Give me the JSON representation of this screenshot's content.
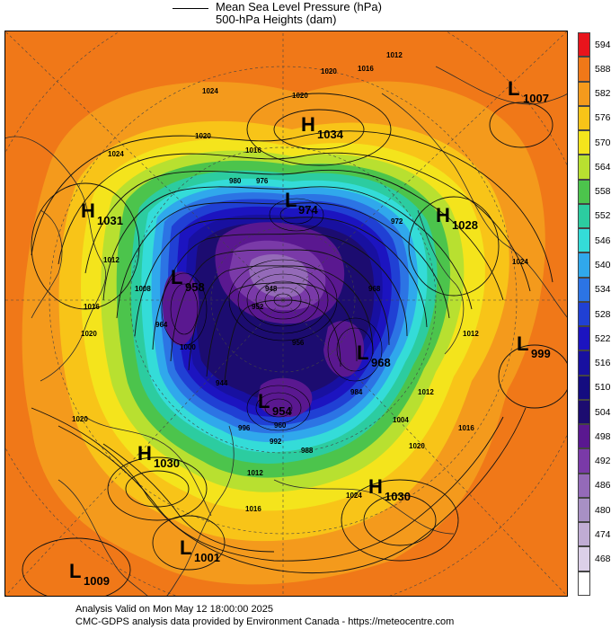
{
  "legend": {
    "line1": "Mean Sea Level Pressure (hPa)",
    "line2": "500-hPa Heights (dam)"
  },
  "colorbar": {
    "labels": [
      "594",
      "588",
      "582",
      "576",
      "570",
      "564",
      "558",
      "552",
      "546",
      "540",
      "534",
      "528",
      "522",
      "516",
      "510",
      "504",
      "498",
      "492",
      "486",
      "480",
      "474",
      "468"
    ],
    "colors": [
      "#e8141c",
      "#f07818",
      "#f49a1c",
      "#f8c418",
      "#f4e41c",
      "#b8e030",
      "#4cc44c",
      "#2ccca0",
      "#34dcd8",
      "#30a8ec",
      "#2c74e4",
      "#2040d4",
      "#1c14c0",
      "#1810a0",
      "#140c80",
      "#1c0c70",
      "#5a1890",
      "#7a3aa8",
      "#946ab8",
      "#a890c4",
      "#c0acd4",
      "#dcd0e8",
      "#ffffff"
    ]
  },
  "pressure_centers": [
    {
      "type": "H",
      "value": "1034",
      "label_H": "H",
      "label_v": "1034"
    },
    {
      "type": "L",
      "value": "1007",
      "label_H": "L",
      "label_v": "1007"
    },
    {
      "type": "H",
      "value": "1031",
      "label_H": "H",
      "label_v": "1031"
    },
    {
      "type": "H",
      "value": "1028",
      "label_H": "H",
      "label_v": "1028"
    },
    {
      "type": "L",
      "value": "974",
      "label_H": "L",
      "label_v": "974"
    },
    {
      "type": "L",
      "value": "999",
      "label_H": "L",
      "label_v": "999"
    },
    {
      "type": "L",
      "value": "968",
      "label_H": "L",
      "label_v": "968"
    },
    {
      "type": "L",
      "value": "954",
      "label_H": "L",
      "label_v": "954"
    },
    {
      "type": "H",
      "value": "1030",
      "label_H": "H",
      "label_v": "1030"
    },
    {
      "type": "H",
      "value": "1030",
      "label_H": "H",
      "label_v": "1030"
    },
    {
      "type": "L",
      "value": "1001",
      "label_H": "L",
      "label_v": "1001"
    },
    {
      "type": "L",
      "value": "1009",
      "label_H": "L",
      "label_v": "1009"
    },
    {
      "type": "L",
      "value": "958",
      "label_H": "L",
      "label_v": "958"
    }
  ],
  "isobar_labels": [
    "1020",
    "1016",
    "1012",
    "1020",
    "1024",
    "1020",
    "1016",
    "1012",
    "1016",
    "1020",
    "1024",
    "1008",
    "1004",
    "1000",
    "996",
    "992",
    "988",
    "984",
    "980",
    "976",
    "972",
    "968",
    "964",
    "960",
    "956",
    "952",
    "948",
    "944",
    "1012",
    "1016",
    "1020",
    "1024",
    "1012",
    "1016",
    "1020",
    "1024",
    "1012"
  ],
  "footer": {
    "line1": "Analysis Valid on Mon May 12 18:00:00 2025",
    "line2": "CMC-GDPS analysis data provided by Environment Canada - https://meteocentre.com"
  }
}
